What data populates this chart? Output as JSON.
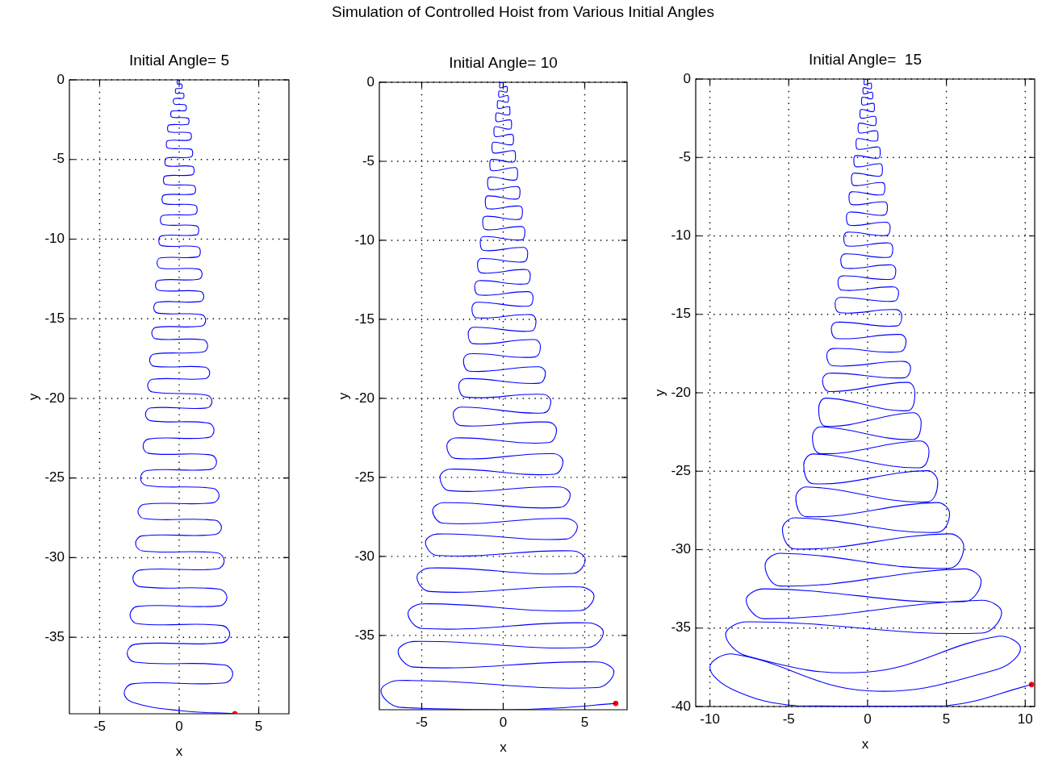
{
  "chart_data": [
    {
      "type": "other",
      "title": "Simulation of Controlled Hoist from Various Initial Angles"
    },
    {
      "type": "line",
      "title": "Initial Angle= 5",
      "xlabel": "x",
      "ylabel": "y",
      "xlim": [
        -6.9,
        6.9
      ],
      "ylim": [
        -39.8,
        0
      ],
      "xticks": [
        -5,
        0,
        5
      ],
      "yticks": [
        0,
        -5,
        -10,
        -15,
        -20,
        -25,
        -30,
        -35
      ],
      "grid": true,
      "marker": "none",
      "series": [
        {
          "type": "line",
          "color": "#0000ff",
          "x": [
            0,
            -0.11,
            -0.13,
            -0.11,
            0.15,
            0.18,
            0.15,
            -0.2,
            -0.24,
            -0.2,
            0.26,
            0.3,
            0.26,
            -0.31,
            -0.37,
            -0.31,
            0.38,
            0.45,
            0.38,
            -0.45,
            -0.53,
            -0.45,
            0.53,
            0.62,
            0.53,
            -0.62,
            -0.73,
            -0.62,
            0.65,
            0.77,
            0.65,
            -0.69,
            -0.81,
            -0.69,
            0.72,
            0.85,
            0.72,
            -0.76,
            -0.9,
            -0.76,
            0.8,
            0.94,
            0.8,
            -0.84,
            -0.99,
            -0.84,
            0.88,
            1.03,
            0.88,
            -0.92,
            -1.08,
            -0.92,
            0.96,
            1.13,
            0.96,
            -1.0,
            -1.18,
            -1.0,
            1.05,
            1.23,
            1.05,
            -1.09,
            -1.28,
            -1.09,
            1.13,
            1.33,
            1.13,
            -1.18,
            -1.39,
            -1.18,
            1.22,
            1.44,
            1.22,
            -1.27,
            -1.49,
            -1.27,
            1.32,
            1.55,
            1.32,
            -1.36,
            -1.6,
            -1.36,
            1.41,
            1.66,
            1.41,
            -1.46,
            -1.72,
            -1.46,
            1.52,
            1.79,
            1.52,
            -1.58,
            -1.86,
            -1.58,
            1.63,
            1.92,
            1.63,
            -1.68,
            -1.98,
            -1.68,
            1.75,
            2.06,
            1.75,
            -1.8,
            -2.12,
            -1.8,
            1.86,
            2.19,
            1.86,
            -1.93,
            -2.27,
            -1.93,
            2.0,
            2.35,
            2.0,
            -2.06,
            -2.43,
            -2.06,
            2.13,
            2.51,
            2.13,
            -2.2,
            -2.59,
            -2.2,
            2.26,
            2.66,
            2.26,
            -2.33,
            -2.74,
            -2.33,
            2.41,
            2.83,
            2.41,
            -2.47,
            -2.91,
            -2.47,
            2.55,
            3.0,
            2.55,
            -2.63,
            -3.09,
            -2.63,
            2.7,
            3.18,
            2.7,
            -2.78,
            -3.27,
            -2.78,
            2.86,
            3.37,
            2.86,
            -2.94,
            -3.46,
            -2.94,
            0,
            3.5
          ],
          "values": [
            0,
            -0.04,
            -0.15,
            -0.26,
            -0.27,
            -0.4,
            -0.53,
            -0.56,
            -0.7,
            -0.84,
            -0.85,
            -1.0,
            -1.15,
            -1.18,
            -1.35,
            -1.52,
            -1.57,
            -1.75,
            -1.93,
            -1.96,
            -2.15,
            -2.34,
            -2.4,
            -2.6,
            -2.8,
            -2.83,
            -3.05,
            -3.27,
            -3.32,
            -3.55,
            -3.78,
            -3.81,
            -4.05,
            -4.29,
            -4.35,
            -4.6,
            -4.85,
            -4.9,
            -5.15,
            -5.4,
            -5.43,
            -5.7,
            -5.97,
            -6.03,
            -6.3,
            -6.57,
            -6.63,
            -6.9,
            -7.17,
            -7.22,
            -7.5,
            -7.78,
            -7.86,
            -8.15,
            -8.44,
            -8.51,
            -8.8,
            -9.09,
            -9.16,
            -9.45,
            -9.74,
            -9.79,
            -10.1,
            -10.41,
            -10.48,
            -10.8,
            -11.12,
            -11.18,
            -11.5,
            -11.82,
            -11.88,
            -12.2,
            -12.52,
            -12.58,
            -12.9,
            -13.22,
            -13.28,
            -13.6,
            -13.92,
            -13.96,
            -14.3,
            -14.64,
            -14.74,
            -15.1,
            -15.46,
            -15.54,
            -15.9,
            -16.26,
            -16.32,
            -16.7,
            -17.08,
            -17.22,
            -17.6,
            -17.98,
            -18.04,
            -18.4,
            -18.76,
            -18.8,
            -19.2,
            -19.6,
            -19.8,
            -20.2,
            -20.6,
            -20.6,
            -21.0,
            -21.4,
            -21.55,
            -22.0,
            -22.45,
            -22.55,
            -23.0,
            -23.45,
            -23.55,
            -24.0,
            -24.45,
            -24.53,
            -25.0,
            -25.47,
            -25.65,
            -26.1,
            -26.55,
            -26.65,
            -27.1,
            -27.55,
            -27.65,
            -28.1,
            -28.55,
            -28.63,
            -29.1,
            -29.57,
            -29.7,
            -30.2,
            -30.7,
            -30.78,
            -31.3,
            -31.82,
            -31.98,
            -32.5,
            -33.02,
            -33.06,
            -33.6,
            -34.14,
            -34.26,
            -34.8,
            -35.34,
            -35.44,
            -36.0,
            -36.56,
            -36.74,
            -37.3,
            -37.86,
            -37.92,
            -38.5,
            -39.08,
            -39.6,
            -39.8
          ]
        },
        {
          "type": "scatter",
          "color": "#ff0000",
          "marker": "circle",
          "x": [
            3.5
          ],
          "values": [
            -39.8
          ]
        }
      ]
    },
    {
      "type": "line",
      "title": "Initial Angle= 10",
      "xlabel": "x",
      "ylabel": "y",
      "xlim": [
        -7.6,
        7.6
      ],
      "ylim": [
        -39.7,
        0
      ],
      "xticks": [
        -5,
        0,
        5
      ],
      "yticks": [
        0,
        -5,
        -10,
        -15,
        -20,
        -25,
        -30,
        -35
      ],
      "grid": true,
      "marker": "none",
      "series": [
        {
          "type": "line",
          "color": "#0000ff",
          "x": [
            0,
            -0.19,
            -0.22,
            -0.19,
            0.21,
            0.25,
            0.21,
            -0.24,
            -0.28,
            -0.24,
            0.27,
            0.32,
            0.27,
            -0.31,
            -0.36,
            -0.31,
            0.35,
            0.41,
            0.35,
            -0.39,
            -0.46,
            -0.39,
            0.43,
            0.51,
            0.43,
            -0.48,
            -0.57,
            -0.48,
            0.53,
            0.63,
            0.53,
            -0.58,
            -0.69,
            -0.58,
            0.64,
            0.75,
            0.64,
            -0.7,
            -0.82,
            -0.7,
            0.75,
            0.88,
            0.75,
            -0.81,
            -0.96,
            -0.81,
            0.87,
            1.03,
            0.87,
            -0.94,
            -1.1,
            -0.94,
            1.0,
            1.18,
            1.0,
            -1.07,
            -1.26,
            -1.07,
            1.13,
            1.33,
            1.13,
            -1.2,
            -1.41,
            -1.2,
            1.27,
            1.5,
            1.27,
            -1.34,
            -1.58,
            -1.34,
            1.41,
            1.66,
            1.41,
            -1.49,
            -1.75,
            -1.49,
            1.56,
            1.83,
            1.56,
            -1.63,
            -1.92,
            -1.63,
            1.71,
            2.01,
            1.71,
            -1.83,
            -2.15,
            -1.83,
            1.94,
            2.28,
            1.94,
            -2.07,
            -2.44,
            -2.07,
            2.2,
            2.59,
            2.2,
            -2.32,
            -2.73,
            -2.32,
            2.48,
            2.92,
            2.48,
            -2.61,
            -3.07,
            -2.61,
            2.78,
            3.27,
            2.78,
            -2.94,
            -3.46,
            -2.94,
            3.12,
            3.67,
            3.12,
            -3.3,
            -3.88,
            -3.3,
            3.49,
            4.11,
            3.49,
            -3.68,
            -4.33,
            -3.68,
            3.87,
            4.55,
            3.87,
            -4.05,
            -4.77,
            -4.05,
            4.27,
            5.03,
            4.27,
            -4.5,
            -5.29,
            -4.5,
            4.74,
            5.57,
            4.74,
            -4.97,
            -5.84,
            -4.97,
            5.22,
            6.14,
            5.22,
            -5.48,
            -6.45,
            -5.48,
            5.77,
            6.79,
            5.77,
            -6.4,
            -7.5,
            -6.4,
            0,
            3.2,
            6.9
          ],
          "values": [
            0,
            -0.03,
            -0.15,
            -0.35,
            -0.26,
            -0.4,
            -0.62,
            -0.55,
            -0.7,
            -0.94,
            -0.84,
            -1.0,
            -1.26,
            -1.16,
            -1.35,
            -1.65,
            -1.55,
            -1.75,
            -2.07,
            -1.94,
            -2.15,
            -2.49,
            -2.38,
            -2.6,
            -2.96,
            -2.81,
            -3.05,
            -3.43,
            -3.3,
            -3.55,
            -3.95,
            -3.79,
            -4.05,
            -4.47,
            -4.33,
            -4.6,
            -5.04,
            -4.88,
            -5.15,
            -5.59,
            -5.4,
            -5.7,
            -6.18,
            -6.0,
            -6.3,
            -6.78,
            -6.6,
            -6.9,
            -7.38,
            -7.19,
            -7.5,
            -8.0,
            -7.83,
            -8.15,
            -8.67,
            -8.48,
            -8.8,
            -9.32,
            -9.13,
            -9.45,
            -9.97,
            -9.76,
            -10.1,
            -10.64,
            -10.45,
            -10.8,
            -11.36,
            -11.15,
            -11.5,
            -12.06,
            -11.85,
            -12.2,
            -12.76,
            -12.55,
            -12.9,
            -13.46,
            -13.25,
            -13.6,
            -14.16,
            -13.92,
            -14.3,
            -14.9,
            -14.7,
            -15.1,
            -15.74,
            -15.5,
            -15.9,
            -16.54,
            -16.28,
            -16.7,
            -17.38,
            -17.18,
            -17.6,
            -18.28,
            -18.0,
            -18.4,
            -19.04,
            -18.75,
            -19.2,
            -19.92,
            -19.75,
            -20.2,
            -20.92,
            -20.55,
            -21.0,
            -21.72,
            -21.5,
            -22.0,
            -22.8,
            -22.5,
            -23.0,
            -23.8,
            -23.5,
            -24.0,
            -24.8,
            -24.48,
            -25.0,
            -25.84,
            -25.6,
            -26.1,
            -26.9,
            -26.6,
            -27.1,
            -27.9,
            -27.6,
            -28.1,
            -28.9,
            -28.58,
            -29.1,
            -29.94,
            -29.65,
            -30.2,
            -31.08,
            -30.73,
            -31.3,
            -32.22,
            -31.93,
            -32.5,
            -33.42,
            -33.0,
            -33.6,
            -34.56,
            -34.2,
            -34.8,
            -35.76,
            -35.38,
            -36.0,
            -37.0,
            -36.68,
            -37.3,
            -38.3,
            -37.85,
            -38.5,
            -39.54,
            -39.7,
            -39.6,
            -39.3
          ]
        },
        {
          "type": "scatter",
          "color": "#ff0000",
          "marker": "circle",
          "x": [
            6.9
          ],
          "values": [
            -39.3
          ]
        }
      ]
    },
    {
      "type": "line",
      "title": "Initial Angle=  15",
      "xlabel": "x",
      "ylabel": "y",
      "xlim": [
        -10.9,
        10.6
      ],
      "ylim": [
        -40,
        0
      ],
      "xticks": [
        -10,
        -5,
        0,
        5,
        10
      ],
      "yticks": [
        0,
        -5,
        -10,
        -15,
        -20,
        -25,
        -30,
        -35,
        -40
      ],
      "grid": true,
      "marker": "none",
      "series": [
        {
          "type": "line",
          "color": "#0000ff",
          "x": [
            0,
            -0.19,
            -0.22,
            -0.19,
            0.21,
            0.25,
            0.21,
            -0.25,
            -0.29,
            -0.25,
            0.28,
            0.33,
            0.28,
            -0.32,
            -0.38,
            -0.32,
            0.37,
            0.43,
            0.37,
            -0.41,
            -0.48,
            -0.41,
            0.46,
            0.54,
            0.46,
            -0.51,
            -0.6,
            -0.51,
            0.56,
            0.66,
            0.56,
            -0.62,
            -0.73,
            -0.62,
            0.68,
            0.8,
            0.68,
            -0.74,
            -0.87,
            -0.74,
            0.8,
            0.94,
            0.8,
            -0.87,
            -1.02,
            -0.87,
            0.93,
            1.1,
            0.93,
            -1.0,
            -1.18,
            -1.0,
            1.07,
            1.26,
            1.07,
            -1.14,
            -1.34,
            -1.14,
            1.22,
            1.43,
            1.22,
            -1.28,
            -1.51,
            -1.28,
            1.36,
            1.6,
            1.36,
            -1.44,
            -1.7,
            -1.44,
            1.52,
            1.79,
            1.52,
            -1.6,
            -1.88,
            -1.6,
            1.67,
            1.97,
            1.67,
            -1.75,
            -2.06,
            -1.75,
            1.84,
            2.17,
            1.84,
            -1.96,
            -2.3,
            -1.96,
            2.07,
            2.44,
            2.07,
            -2.2,
            -2.59,
            -2.2,
            2.32,
            2.73,
            2.32,
            -2.43,
            -2.86,
            -2.43,
            2.55,
            3.0,
            2.55,
            -2.64,
            -3.1,
            -2.64,
            2.89,
            3.4,
            2.89,
            -2.98,
            -3.5,
            -2.98,
            3.32,
            3.9,
            3.32,
            -3.44,
            -4.05,
            -3.44,
            3.78,
            4.45,
            3.78,
            -3.87,
            -4.55,
            -3.87,
            4.42,
            5.2,
            4.42,
            -4.59,
            -5.4,
            -4.59,
            5.19,
            6.1,
            5.19,
            -5.53,
            -6.5,
            -5.53,
            6.12,
            7.2,
            6.12,
            -6.55,
            -7.7,
            -6.55,
            7.23,
            8.5,
            7.23,
            -7.65,
            -9.0,
            -7.65,
            0,
            8.25,
            9.7,
            8.25,
            0,
            -8.5,
            -10.0,
            -8.5,
            -4.5,
            5,
            10.4
          ],
          "values": [
            0,
            -0.03,
            -0.15,
            -0.35,
            -0.26,
            -0.4,
            -0.62,
            -0.55,
            -0.7,
            -0.94,
            -0.84,
            -1.0,
            -1.26,
            -1.16,
            -1.35,
            -1.65,
            -1.55,
            -1.75,
            -2.07,
            -1.94,
            -2.15,
            -2.49,
            -2.38,
            -2.6,
            -2.96,
            -2.81,
            -3.05,
            -3.43,
            -3.3,
            -3.55,
            -3.95,
            -3.79,
            -4.05,
            -4.47,
            -4.33,
            -4.6,
            -5.04,
            -4.88,
            -5.15,
            -5.59,
            -5.4,
            -5.7,
            -6.18,
            -6.0,
            -6.3,
            -6.78,
            -6.6,
            -6.9,
            -7.38,
            -7.19,
            -7.5,
            -8.0,
            -7.83,
            -8.15,
            -8.67,
            -8.48,
            -8.8,
            -9.32,
            -9.13,
            -9.45,
            -9.97,
            -9.76,
            -10.1,
            -10.64,
            -10.45,
            -10.8,
            -11.36,
            -11.15,
            -11.5,
            -12.06,
            -11.85,
            -12.2,
            -12.76,
            -12.55,
            -12.9,
            -13.46,
            -13.25,
            -13.6,
            -14.16,
            -13.92,
            -14.3,
            -14.9,
            -14.7,
            -15.1,
            -15.74,
            -15.5,
            -15.9,
            -16.54,
            -16.28,
            -16.7,
            -17.38,
            -17.18,
            -17.6,
            -18.28,
            -18.0,
            -18.4,
            -19.04,
            -18.75,
            -19.2,
            -19.92,
            -19.34,
            -20.0,
            -21.14,
            -20.34,
            -21.0,
            -22.14,
            -21.27,
            -21.9,
            -22.98,
            -22.17,
            -22.8,
            -23.88,
            -23.07,
            -23.7,
            -24.78,
            -23.9,
            -24.6,
            -25.8,
            -24.97,
            -25.7,
            -26.96,
            -26.0,
            -26.7,
            -27.9,
            -27.0,
            -27.7,
            -28.9,
            -27.97,
            -28.7,
            -29.96,
            -28.99,
            -29.8,
            -31.18,
            -30.23,
            -31.0,
            -32.32,
            -31.23,
            -32.0,
            -33.32,
            -32.5,
            -33.2,
            -34.4,
            -33.23,
            -34.0,
            -35.32,
            -34.6,
            -35.4,
            -36.78,
            -37.8,
            -35.53,
            -36.3,
            -37.62,
            -39.0,
            -36.66,
            -37.5,
            -38.94,
            -39.95,
            -39.95,
            -38.6
          ]
        },
        {
          "type": "scatter",
          "color": "#ff0000",
          "marker": "circle",
          "x": [
            10.4
          ],
          "values": [
            -38.6
          ]
        }
      ]
    }
  ]
}
